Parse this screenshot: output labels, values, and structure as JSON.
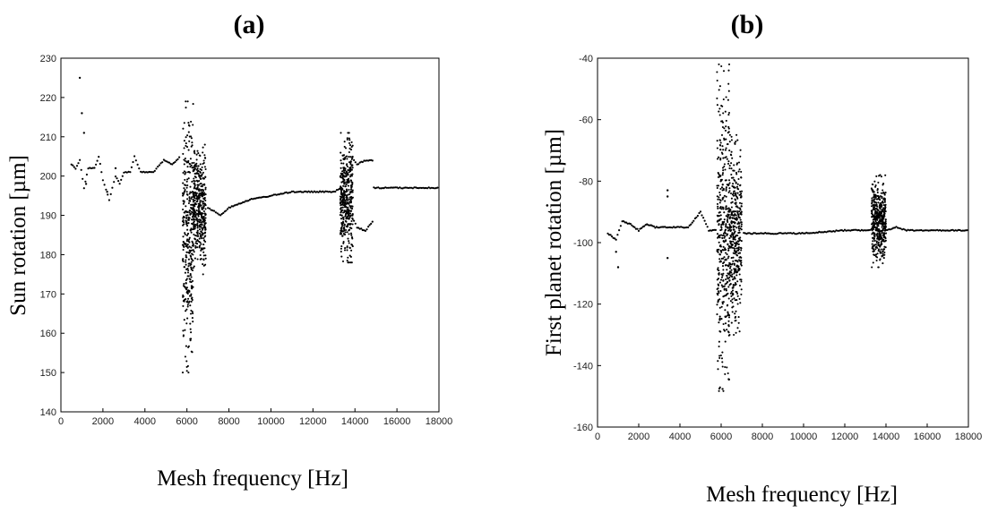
{
  "chart_data": [
    {
      "type": "scatter",
      "panel_label": "(a)",
      "xlabel": "Mesh frequency [Hz]",
      "ylabel": "Sun rotation [µm]",
      "xlim": [
        0,
        18000
      ],
      "ylim": [
        140,
        230
      ],
      "xticks": [
        0,
        2000,
        4000,
        6000,
        8000,
        10000,
        12000,
        14000,
        16000,
        18000
      ],
      "yticks": [
        140,
        150,
        160,
        170,
        180,
        190,
        200,
        210,
        220,
        230
      ],
      "grid": false,
      "legend": "none",
      "marker_color": "#000000",
      "series": [
        {
          "segments": [
            {
              "kind": "curve",
              "points": [
                [
                  500,
                  203
                ],
                [
                  700,
                  202
                ],
                [
                  900,
                  204
                ],
                [
                  1100,
                  197
                ],
                [
                  1300,
                  202
                ],
                [
                  1600,
                  202
                ],
                [
                  1800,
                  205
                ],
                [
                  2000,
                  199
                ],
                [
                  2300,
                  194
                ],
                [
                  2600,
                  200
                ],
                [
                  2800,
                  198
                ],
                [
                  3000,
                  201
                ],
                [
                  3300,
                  201
                ],
                [
                  3500,
                  205
                ],
                [
                  3800,
                  201
                ],
                [
                  4400,
                  201
                ],
                [
                  4900,
                  204
                ],
                [
                  5300,
                  203
                ],
                [
                  5700,
                  205
                ]
              ]
            },
            {
              "kind": "scatter",
              "points": [
                [
                  900,
                  225
                ],
                [
                  1000,
                  216
                ],
                [
                  1100,
                  211
                ],
                [
                  1200,
                  198
                ],
                [
                  2200,
                  196
                ],
                [
                  2600,
                  202
                ]
              ]
            },
            {
              "kind": "band",
              "x": [
                5800,
                6300
              ],
              "y": [
                150,
                219
              ]
            },
            {
              "kind": "band",
              "x": [
                6300,
                6900
              ],
              "y": [
                175,
                208
              ]
            },
            {
              "kind": "curve",
              "points": [
                [
                  7000,
                  192
                ],
                [
                  7300,
                  191
                ],
                [
                  7600,
                  190
                ],
                [
                  8000,
                  192
                ],
                [
                  9000,
                  194
                ],
                [
                  10000,
                  195
                ],
                [
                  11000,
                  196
                ],
                [
                  12000,
                  196
                ],
                [
                  13000,
                  196
                ],
                [
                  13400,
                  197
                ]
              ]
            },
            {
              "kind": "band",
              "x": [
                13300,
                13900
              ],
              "y": [
                178,
                211
              ]
            },
            {
              "kind": "curve",
              "points": [
                [
                  13800,
                  205
                ],
                [
                  14100,
                  203
                ],
                [
                  14500,
                  204
                ],
                [
                  14900,
                  204
                ]
              ]
            },
            {
              "kind": "curve",
              "points": [
                [
                  13800,
                  190
                ],
                [
                  14100,
                  187
                ],
                [
                  14500,
                  186
                ],
                [
                  14900,
                  189
                ]
              ]
            },
            {
              "kind": "curve",
              "points": [
                [
                  14900,
                  197
                ],
                [
                  16000,
                  197
                ],
                [
                  18000,
                  197
                ]
              ]
            }
          ]
        }
      ]
    },
    {
      "type": "scatter",
      "panel_label": "(b)",
      "xlabel": "Mesh frequency [Hz]",
      "ylabel": "First planet rotation [µm]",
      "xlim": [
        0,
        18000
      ],
      "ylim": [
        -160,
        -40
      ],
      "xticks": [
        0,
        2000,
        4000,
        6000,
        8000,
        10000,
        12000,
        14000,
        16000,
        18000
      ],
      "yticks": [
        -160,
        -140,
        -120,
        -100,
        -80,
        -60,
        -40
      ],
      "grid": false,
      "legend": "none",
      "marker_color": "#000000",
      "series": [
        {
          "segments": [
            {
              "kind": "curve",
              "points": [
                [
                  500,
                  -97
                ],
                [
                  900,
                  -99
                ],
                [
                  1200,
                  -93
                ],
                [
                  1600,
                  -94
                ],
                [
                  2000,
                  -96
                ],
                [
                  2400,
                  -94
                ],
                [
                  2800,
                  -95
                ],
                [
                  3200,
                  -95
                ],
                [
                  3700,
                  -95
                ],
                [
                  4400,
                  -95
                ],
                [
                  5000,
                  -90
                ],
                [
                  5400,
                  -96
                ],
                [
                  5800,
                  -96
                ]
              ]
            },
            {
              "kind": "scatter",
              "points": [
                [
                  900,
                  -103
                ],
                [
                  1000,
                  -108
                ],
                [
                  3400,
                  -83
                ],
                [
                  3400,
                  -85
                ],
                [
                  3400,
                  -105
                ]
              ]
            },
            {
              "kind": "band",
              "x": [
                5800,
                6400
              ],
              "y": [
                -150,
                -42
              ]
            },
            {
              "kind": "band",
              "x": [
                6400,
                7000
              ],
              "y": [
                -130,
                -65
              ]
            },
            {
              "kind": "curve",
              "points": [
                [
                  7100,
                  -97
                ],
                [
                  8000,
                  -97
                ],
                [
                  10000,
                  -97
                ],
                [
                  12000,
                  -96
                ],
                [
                  13300,
                  -96
                ]
              ]
            },
            {
              "kind": "band",
              "x": [
                13300,
                14000
              ],
              "y": [
                -108,
                -78
              ]
            },
            {
              "kind": "curve",
              "points": [
                [
                  14000,
                  -96
                ],
                [
                  14500,
                  -95
                ],
                [
                  15000,
                  -96
                ],
                [
                  16000,
                  -96
                ],
                [
                  18000,
                  -96
                ]
              ]
            }
          ]
        }
      ]
    }
  ]
}
